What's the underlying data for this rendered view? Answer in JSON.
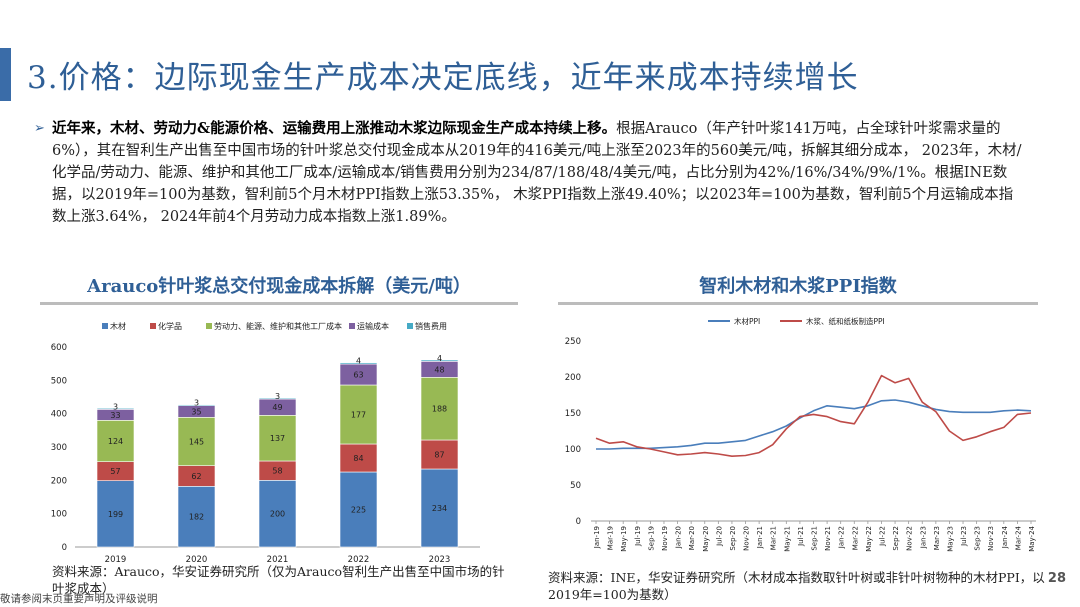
{
  "page_title": "3.价格：边际现金生产成本决定底线，近年来成本持续增长",
  "bullet": {
    "arrow": "➢",
    "bold": "近年来，木材、劳动力&能源价格、运输费用上涨推动木浆边际现金生产成本持续上移。",
    "text": "根据Arauco（年产针叶浆141万吨，占全球针叶浆需求量的6%），其在智利生产出售至中国市场的针叶浆总交付现金成本从2019年的416美元/吨上涨至2023年的560美元/吨，拆解其细分成本， 2023年，木材/化学品/劳动力、能源、维护和其他工厂成本/运输成本/销售费用分别为234/87/188/48/4美元/吨，占比分别为42%/16%/34%/9%/1%。根据INE数据，以2019年=100为基数，智利前5个月木材PPI指数上涨53.35%， 木浆PPI指数上涨49.40%；以2023年=100为基数，智利前5个月运输成本指数上涨3.64%， 2024年前4个月劳动力成本指数上涨1.89%。"
  },
  "left_chart": {
    "title": "Arauco针叶浆总交付现金成本拆解（美元/吨）",
    "source": "资料来源：Arauco，华安证券研究所（仅为Arauco智利生产出售至中国市场的针叶浆成本）"
  },
  "right_chart": {
    "title": "智利木材和木浆PPI指数",
    "source": "资料来源：INE，华安证券研究所（木材成本指数取针叶树或非针叶树物种的木材PPI，以2019年=100为基数）"
  },
  "page_number": "28",
  "disclaimer": "敬请参阅末页重要声明及评级说明",
  "chart_data": [
    {
      "type": "bar",
      "stacked": true,
      "categories": [
        "2019",
        "2020",
        "2021",
        "2022",
        "2023"
      ],
      "series": [
        {
          "name": "木材",
          "color": "#4a7ebb",
          "values": [
            199,
            182,
            200,
            225,
            234
          ]
        },
        {
          "name": "化学品",
          "color": "#be4b48",
          "values": [
            57,
            62,
            58,
            84,
            87
          ]
        },
        {
          "name": "劳动力、能源、维护和其他工厂成本",
          "color": "#98b954",
          "values": [
            124,
            145,
            137,
            177,
            188
          ]
        },
        {
          "name": "运输成本",
          "color": "#7d60a0",
          "values": [
            33,
            35,
            49,
            63,
            48
          ]
        },
        {
          "name": "销售费用",
          "color": "#46aac5",
          "values": [
            3,
            3,
            3,
            4,
            4
          ]
        }
      ],
      "yticks": [
        "0",
        "100",
        "200",
        "300",
        "400",
        "500",
        "600"
      ],
      "ylim": [
        0,
        600
      ],
      "grid": false,
      "legend": "top"
    },
    {
      "type": "line",
      "x": [
        "Jan-19",
        "Mar-19",
        "May-19",
        "Jul-19",
        "Sep-19",
        "Nov-19",
        "Jan-20",
        "Mar-20",
        "May-20",
        "Jul-20",
        "Sep-20",
        "Nov-20",
        "Jan-21",
        "Mar-21",
        "May-21",
        "Jul-21",
        "Sep-21",
        "Nov-21",
        "Jan-22",
        "Mar-22",
        "May-22",
        "Jul-22",
        "Sep-22",
        "Nov-22",
        "Jan-23",
        "Mar-23",
        "May-23",
        "Jul-23",
        "Sep-23",
        "Nov-23",
        "Jan-24",
        "Mar-24",
        "May-24"
      ],
      "series": [
        {
          "name": "木材PPI",
          "color": "#4a7ebb",
          "values": [
            100,
            100,
            101,
            101,
            101,
            102,
            103,
            105,
            108,
            108,
            110,
            112,
            118,
            124,
            132,
            143,
            153,
            160,
            158,
            156,
            160,
            167,
            168,
            165,
            160,
            155,
            152,
            151,
            151,
            151,
            153,
            154,
            153
          ]
        },
        {
          "name": "木浆、纸和纸板制造PPI",
          "color": "#be4b48",
          "values": [
            115,
            108,
            110,
            103,
            100,
            96,
            92,
            93,
            95,
            93,
            90,
            91,
            95,
            106,
            128,
            145,
            148,
            145,
            138,
            135,
            165,
            202,
            192,
            198,
            165,
            152,
            125,
            112,
            117,
            124,
            130,
            148,
            150
          ]
        }
      ],
      "yticks": [
        "0",
        "50",
        "100",
        "150",
        "200",
        "250"
      ],
      "ylim": [
        0,
        250
      ],
      "grid": false,
      "legend": "top"
    }
  ]
}
